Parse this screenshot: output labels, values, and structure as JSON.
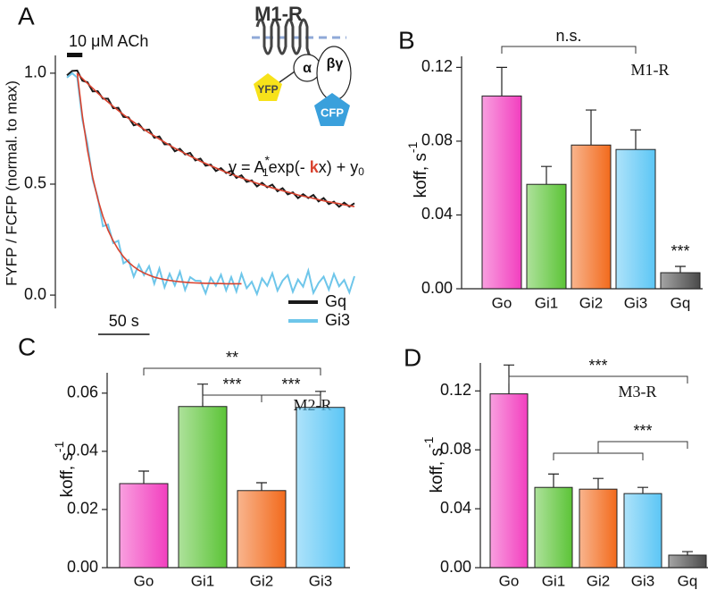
{
  "chart_data": [
    {
      "type": "line",
      "panel": "A",
      "ylabel": "FYFP / FCFP (normal. to max)",
      "xlim": [
        0,
        280
      ],
      "ylim": [
        -0.06,
        1.08
      ],
      "yticks": [
        {
          "value": 0,
          "label": "0.0"
        },
        {
          "value": 0.5,
          "label": "0.5"
        },
        {
          "value": 1,
          "label": "1.0"
        }
      ],
      "x": [
        0,
        5,
        10,
        15,
        20,
        25,
        30,
        35,
        40,
        45,
        50,
        55,
        60,
        65,
        70,
        75,
        80,
        85,
        90,
        95,
        100,
        105,
        110,
        115,
        120,
        125,
        130,
        135,
        140,
        145,
        150,
        155,
        160,
        165,
        170,
        175,
        180,
        185,
        190,
        195,
        200,
        205,
        210,
        215,
        220,
        225,
        230,
        235,
        240,
        245,
        250,
        255,
        260,
        265,
        270,
        275,
        280
      ],
      "series": [
        {
          "name": "Gq",
          "color": "#1a1a1a",
          "values": [
            0.99,
            1.01,
            1.012,
            0.966,
            0.959,
            0.918,
            0.919,
            0.885,
            0.885,
            0.842,
            0.844,
            0.803,
            0.801,
            0.765,
            0.772,
            0.743,
            0.746,
            0.709,
            0.715,
            0.679,
            0.68,
            0.648,
            0.659,
            0.634,
            0.641,
            0.607,
            0.615,
            0.583,
            0.588,
            0.559,
            0.572,
            0.55,
            0.56,
            0.528,
            0.54,
            0.51,
            0.517,
            0.49,
            0.506,
            0.486,
            0.498,
            0.468,
            0.482,
            0.454,
            0.463,
            0.437,
            0.455,
            0.437,
            0.451,
            0.422,
            0.437,
            0.41,
            0.421,
            0.398,
            0.416,
            0.399,
            0.414
          ]
        },
        {
          "name": "Gi3",
          "color": "#6ec6ea",
          "values": [
            0.98,
            1.0,
            0.98,
            0.79,
            0.68,
            0.52,
            0.44,
            0.31,
            0.318,
            0.234,
            0.245,
            0.143,
            0.158,
            0.083,
            0.137,
            0.09,
            0.13,
            0.051,
            0.12,
            0.035,
            0.096,
            0.043,
            0.105,
            0.023,
            0.081,
            0.065,
            0.064,
            0.008,
            0.078,
            0.042,
            0.092,
            0.021,
            0.081,
            0.016,
            0.096,
            0.031,
            0.06,
            0.005,
            0.075,
            0.042,
            0.098,
            0.02,
            0.065,
            0.09,
            0.015,
            0.07,
            0.038,
            0.11,
            0.01,
            0.055,
            0.083,
            0.025,
            0.095,
            0.04,
            0.068,
            0.012,
            0.085
          ]
        }
      ],
      "fits": [
        {
          "color": "#d9432f",
          "x": [
            10,
            15,
            20,
            25,
            30,
            35,
            40,
            45,
            50,
            55,
            60,
            65,
            70,
            75,
            80,
            85,
            90,
            95,
            100,
            105,
            110,
            115,
            120,
            125,
            130,
            135,
            140,
            145,
            150,
            155,
            160,
            165,
            170,
            175,
            180,
            185,
            190,
            195,
            200,
            205,
            210,
            215,
            220,
            225,
            230,
            235,
            240,
            245,
            250,
            255,
            260,
            265,
            270,
            275,
            280
          ],
          "values": [
            1.0,
            0.976,
            0.954,
            0.932,
            0.91,
            0.889,
            0.87,
            0.85,
            0.832,
            0.813,
            0.796,
            0.779,
            0.763,
            0.747,
            0.731,
            0.717,
            0.703,
            0.689,
            0.675,
            0.662,
            0.65,
            0.638,
            0.626,
            0.615,
            0.603,
            0.593,
            0.583,
            0.573,
            0.563,
            0.554,
            0.545,
            0.536,
            0.528,
            0.52,
            0.512,
            0.504,
            0.497,
            0.49,
            0.483,
            0.476,
            0.47,
            0.464,
            0.458,
            0.451,
            0.446,
            0.441,
            0.436,
            0.43,
            0.425,
            0.42,
            0.416,
            0.412,
            0.407,
            0.403,
            0.399
          ]
        },
        {
          "color": "#d9432f",
          "x": [
            10,
            15,
            20,
            25,
            30,
            35,
            40,
            45,
            50,
            55,
            60,
            65,
            70,
            75,
            80,
            85,
            90,
            95,
            100,
            105,
            110,
            115,
            120,
            125,
            130,
            135,
            140,
            145,
            150,
            155,
            160,
            165,
            170
          ],
          "values": [
            1.0,
            0.807,
            0.653,
            0.531,
            0.433,
            0.355,
            0.293,
            0.244,
            0.205,
            0.173,
            0.148,
            0.128,
            0.112,
            0.1,
            0.09,
            0.081,
            0.075,
            0.07,
            0.066,
            0.063,
            0.06,
            0.058,
            0.056,
            0.055,
            0.054,
            0.053,
            0.053,
            0.052,
            0.052,
            0.051,
            0.051,
            0.051,
            0.051
          ]
        }
      ],
      "stimulus": {
        "label": "10 μM ACh",
        "start": 0,
        "end": 15
      },
      "scalebar": {
        "label": "50 s",
        "value": 50
      },
      "equation": [
        "y = A",
        "*",
        "1",
        "exp(- ",
        "k",
        "x) + y",
        "0"
      ],
      "diagram": {
        "receptor": "M1-R",
        "alpha": "α",
        "betagamma": "βγ",
        "yfp": "YFP",
        "cfp": "CFP"
      }
    },
    {
      "type": "bar",
      "panel": "B",
      "label": "M1-R",
      "ylabel": [
        "koff, s",
        "-1"
      ],
      "categories": [
        "Go",
        "Gi1",
        "Gi2",
        "Gi3",
        "Gq"
      ],
      "values": [
        0.1045,
        0.0566,
        0.0779,
        0.0755,
        0.0087
      ],
      "errors": [
        0.0155,
        0.0097,
        0.019,
        0.0106,
        0.0034
      ],
      "colors": [
        "#f23fbf",
        "#5cc437",
        "#f26a1c",
        "#5cc6f5",
        "#4a4a4a"
      ],
      "ylim": [
        0,
        0.126
      ],
      "yticks": [
        {
          "value": 0,
          "label": "0.00"
        },
        0.04,
        0.08,
        0.12
      ],
      "annotations": [
        "n.s.",
        "***"
      ]
    },
    {
      "type": "bar",
      "panel": "C",
      "label": "M2-R",
      "ylabel": [
        "koff, s",
        "-1"
      ],
      "categories": [
        "Go",
        "Gi1",
        "Gi2",
        "Gi3"
      ],
      "values": [
        0.0289,
        0.0554,
        0.0265,
        0.0551
      ],
      "errors": [
        0.0043,
        0.0077,
        0.0027,
        0.0055
      ],
      "colors": [
        "#f23fbf",
        "#5cc437",
        "#f26a1c",
        "#5cc6f5"
      ],
      "ylim": [
        0,
        0.067
      ],
      "yticks": [
        {
          "value": 0,
          "label": "0.00"
        },
        0.02,
        0.04,
        0.06
      ],
      "annotations": [
        "**",
        "***",
        "***"
      ]
    },
    {
      "type": "bar",
      "panel": "D",
      "label": "M3-R",
      "ylabel": [
        "koff, s",
        "-1"
      ],
      "categories": [
        "Go",
        "Gi1",
        "Gi2",
        "Gi3",
        "Gq"
      ],
      "values": [
        0.118,
        0.0545,
        0.0533,
        0.0503,
        0.0085
      ],
      "errors": [
        0.0196,
        0.0091,
        0.0073,
        0.0042,
        0.0024
      ],
      "colors": [
        "#f23fbf",
        "#5cc437",
        "#f26a1c",
        "#5cc6f5",
        "#4a4a4a"
      ],
      "ylim": [
        0,
        0.139
      ],
      "yticks": [
        {
          "value": 0,
          "label": "0.00"
        },
        0.04,
        0.08,
        0.12
      ],
      "annotations": [
        "***",
        "***"
      ]
    }
  ]
}
